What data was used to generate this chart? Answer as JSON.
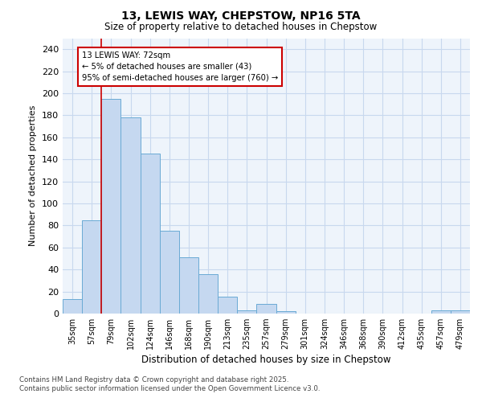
{
  "title_line1": "13, LEWIS WAY, CHEPSTOW, NP16 5TA",
  "title_line2": "Size of property relative to detached houses in Chepstow",
  "xlabel": "Distribution of detached houses by size in Chepstow",
  "ylabel": "Number of detached properties",
  "categories": [
    "35sqm",
    "57sqm",
    "79sqm",
    "102sqm",
    "124sqm",
    "146sqm",
    "168sqm",
    "190sqm",
    "213sqm",
    "235sqm",
    "257sqm",
    "279sqm",
    "301sqm",
    "324sqm",
    "346sqm",
    "368sqm",
    "390sqm",
    "412sqm",
    "435sqm",
    "457sqm",
    "479sqm"
  ],
  "values": [
    13,
    85,
    195,
    178,
    145,
    75,
    51,
    36,
    15,
    3,
    9,
    2,
    0,
    0,
    0,
    0,
    0,
    0,
    0,
    3,
    3
  ],
  "bar_color": "#c5d8f0",
  "bar_edgecolor": "#6aaad4",
  "grid_color": "#c8d8ee",
  "background_color": "#eef4fb",
  "vline_color": "#cc0000",
  "annotation_text": "13 LEWIS WAY: 72sqm\n← 5% of detached houses are smaller (43)\n95% of semi-detached houses are larger (760) →",
  "annotation_box_color": "#ffffff",
  "annotation_box_edgecolor": "#cc0000",
  "ylim": [
    0,
    250
  ],
  "yticks": [
    0,
    20,
    40,
    60,
    80,
    100,
    120,
    140,
    160,
    180,
    200,
    220,
    240
  ],
  "footer_text": "Contains HM Land Registry data © Crown copyright and database right 2025.\nContains public sector information licensed under the Open Government Licence v3.0.",
  "figsize": [
    6.0,
    5.0
  ],
  "dpi": 100
}
